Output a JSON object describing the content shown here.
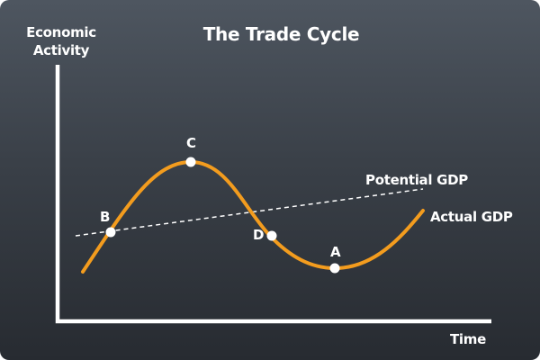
{
  "title": "The Trade Cycle",
  "axes": {
    "y_label_line1": "Economic",
    "y_label_line2": "Activity",
    "x_label": "Time"
  },
  "lines": {
    "potential_label": "Potential GDP",
    "actual_label": "Actual GDP"
  },
  "points": {
    "a": "A",
    "b": "B",
    "c": "C",
    "d": "D"
  },
  "colors": {
    "actual_gdp_curve": "#f39c1e",
    "potential_gdp_line": "#ffffff",
    "axes": "#ffffff",
    "points": "#ffffff",
    "background_top": "#4e5660",
    "background_bottom": "#272b31"
  }
}
